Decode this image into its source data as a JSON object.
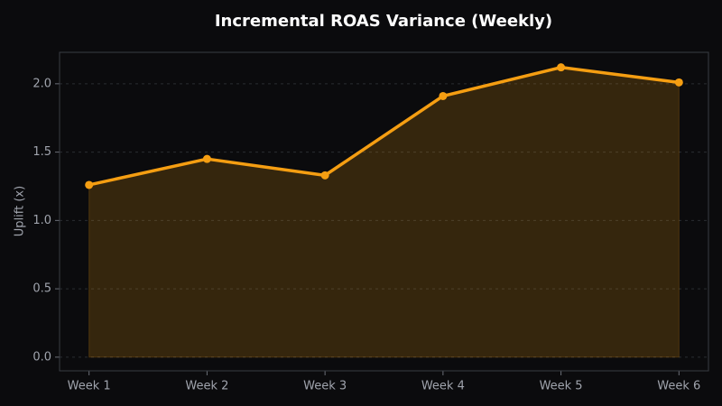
{
  "chart_data": {
    "type": "line",
    "title": "Incremental ROAS Variance (Weekly)",
    "y_label": "Uplift (x)",
    "categories": [
      "Week 1",
      "Week 2",
      "Week 3",
      "Week 4",
      "Week 5",
      "Week 6"
    ],
    "series": [
      {
        "name": "Uplift",
        "color": "#f59e12",
        "values": [
          1.26,
          1.45,
          1.33,
          1.91,
          2.12,
          2.01
        ]
      }
    ],
    "area": true,
    "ylim": [
      -0.1,
      2.23
    ],
    "yticks": [
      {
        "value": 0,
        "label": "0.0"
      },
      {
        "value": 0.5,
        "label": "0.5"
      },
      {
        "value": 1,
        "label": "1.0"
      },
      {
        "value": 1.5,
        "label": "1.5"
      },
      {
        "value": 2,
        "label": "2.0"
      }
    ],
    "grid": true
  }
}
